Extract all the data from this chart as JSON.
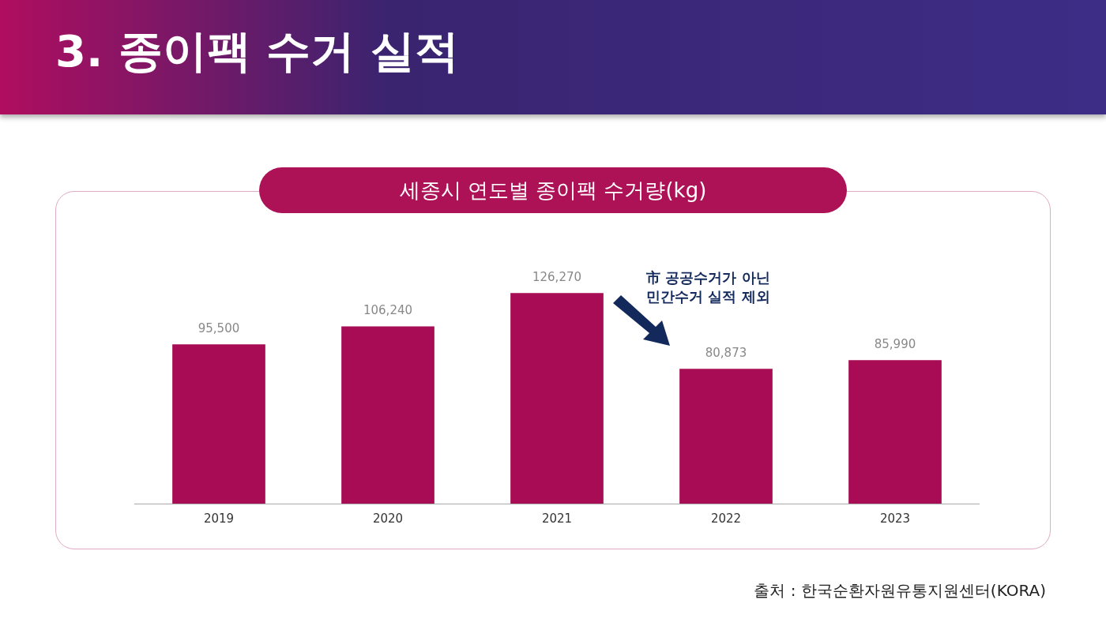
{
  "chart_data": {
    "type": "bar",
    "title": "3. 종이팩 수거 실적",
    "subtitle": "세종시 연도별 종이팩 수거량(kg)",
    "categories": [
      "2019",
      "2020",
      "2021",
      "2022",
      "2023"
    ],
    "values": [
      95500,
      106240,
      126270,
      80873,
      85990
    ],
    "value_labels": [
      "95,500",
      "106,240",
      "126,270",
      "80,873",
      "85,990"
    ],
    "color": "#a80c55",
    "annotations": [
      "市 공공수거가 아닌\n민간수거 실적 제외",
      "출처 : 한국순환자원유통지원센터(KORA)"
    ],
    "grid": false,
    "legend": false,
    "tick_labels": "x"
  }
}
